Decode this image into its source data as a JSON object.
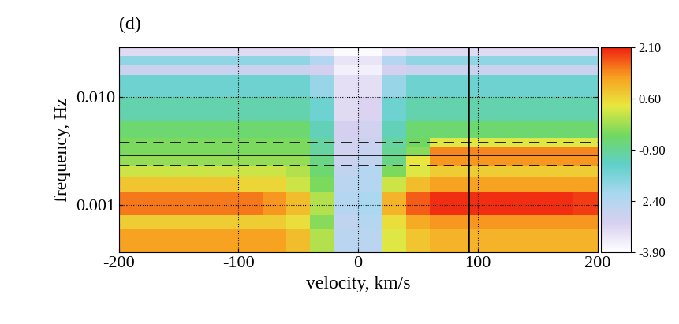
{
  "chart_data": {
    "type": "heatmap",
    "title": "(d)",
    "x_label": "velocity, km/s",
    "y_label": "frequency, Hz",
    "log": "y",
    "grid": true,
    "xlim": [
      -200,
      200
    ],
    "xticks": [
      -200,
      -100,
      0,
      100,
      200
    ],
    "ylim": [
      0.00036,
      0.029
    ],
    "yticks": [
      0.001,
      {
        "value": 0.01,
        "label": "0.010"
      }
    ],
    "x_edges": [
      -200,
      -180,
      -160,
      -140,
      -120,
      -100,
      -80,
      -60,
      -40,
      -20,
      0,
      20,
      40,
      60,
      80,
      100,
      120,
      140,
      160,
      180,
      200
    ],
    "y_edges": [
      0.00036,
      0.0006,
      0.0008,
      0.0013,
      0.0018,
      0.0023,
      0.00287,
      0.0034,
      0.0042,
      0.006,
      0.01,
      0.016,
      0.02,
      0.024,
      0.029
    ],
    "cells": [
      [
        1.2,
        1.2,
        1.2,
        1.2,
        1.2,
        1.2,
        1.2,
        0.9,
        0.0,
        -2.5,
        -2.5,
        0.3,
        0.8,
        1.0,
        1.0,
        1.0,
        1.0,
        1.0,
        1.0,
        1.0
      ],
      [
        0.7,
        0.7,
        0.7,
        0.7,
        0.7,
        0.7,
        0.7,
        0.5,
        -0.3,
        -2.6,
        -2.4,
        0.5,
        1.1,
        1.3,
        1.3,
        1.3,
        1.3,
        1.3,
        1.3,
        1.3
      ],
      [
        1.5,
        1.5,
        1.5,
        1.5,
        1.5,
        1.5,
        1.3,
        0.9,
        0.0,
        -2.4,
        -2.2,
        1.0,
        1.7,
        2.0,
        2.0,
        2.0,
        2.0,
        2.0,
        2.0,
        1.9
      ],
      [
        0.8,
        0.8,
        0.8,
        0.8,
        0.8,
        0.6,
        0.6,
        0.2,
        -0.4,
        -2.5,
        -2.4,
        0.2,
        0.9,
        1.2,
        1.2,
        1.2,
        1.2,
        1.2,
        1.2,
        1.2
      ],
      [
        0.2,
        0.2,
        0.2,
        0.2,
        0.2,
        0.2,
        0.2,
        0.0,
        -0.6,
        -2.6,
        -2.4,
        -0.4,
        0.3,
        0.7,
        0.7,
        0.7,
        0.7,
        0.7,
        0.7,
        0.7
      ],
      [
        -0.2,
        -0.2,
        -0.2,
        -0.2,
        -0.2,
        -0.2,
        -0.2,
        -0.2,
        -0.8,
        -2.8,
        -2.6,
        -0.8,
        0.4,
        1.3,
        1.3,
        1.3,
        1.3,
        1.3,
        1.3,
        1.3
      ],
      [
        -0.4,
        -0.4,
        -0.4,
        -0.4,
        -0.4,
        -0.4,
        -0.4,
        -0.4,
        -1.0,
        -2.9,
        -2.7,
        -0.9,
        -0.3,
        1.4,
        1.4,
        1.4,
        1.4,
        1.4,
        1.4,
        1.4
      ],
      [
        -0.4,
        -0.4,
        -0.4,
        -0.4,
        -0.4,
        -0.4,
        -0.4,
        -0.4,
        -1.0,
        -2.9,
        -2.8,
        -1.0,
        -0.5,
        0.3,
        0.3,
        0.3,
        0.3,
        0.3,
        0.3,
        0.3
      ],
      [
        -0.6,
        -0.6,
        -0.6,
        -0.6,
        -0.6,
        -0.6,
        -0.6,
        -0.6,
        -1.2,
        -3.0,
        -2.9,
        -1.2,
        -0.6,
        -0.6,
        -0.6,
        -0.6,
        -0.6,
        -0.6,
        -0.6,
        -0.6
      ],
      [
        -1.1,
        -1.1,
        -1.1,
        -1.1,
        -1.1,
        -1.1,
        -1.1,
        -1.1,
        -1.5,
        -3.2,
        -3.1,
        -1.5,
        -1.1,
        -1.1,
        -1.1,
        -1.1,
        -1.1,
        -1.1,
        -1.1,
        -1.1
      ],
      [
        -1.5,
        -1.5,
        -1.5,
        -1.5,
        -1.5,
        -1.5,
        -1.5,
        -1.5,
        -2.0,
        -3.3,
        -3.3,
        -2.0,
        -1.5,
        -1.5,
        -1.5,
        -1.5,
        -1.5,
        -1.5,
        -1.5,
        -1.5
      ],
      [
        -2.8,
        -2.8,
        -2.8,
        -2.8,
        -2.8,
        -2.8,
        -2.8,
        -2.8,
        -3.0,
        -3.6,
        -3.6,
        -3.0,
        -2.8,
        -2.8,
        -2.8,
        -2.8,
        -2.8,
        -2.8,
        -2.8,
        -2.8
      ],
      [
        -1.9,
        -1.9,
        -1.9,
        -1.9,
        -1.9,
        -1.9,
        -1.9,
        -1.9,
        -2.4,
        -3.4,
        -3.4,
        -2.4,
        -1.9,
        -1.9,
        -1.9,
        -1.9,
        -1.9,
        -1.9,
        -1.9,
        -1.9
      ],
      [
        -3.2,
        -3.2,
        -3.2,
        -3.2,
        -3.2,
        -3.2,
        -3.2,
        -3.2,
        -3.4,
        -3.8,
        -3.8,
        -3.4,
        -3.2,
        -3.2,
        -3.2,
        -3.2,
        -3.2,
        -3.2,
        -3.2,
        -3.2
      ]
    ],
    "color_range": [
      -3.9,
      2.1
    ],
    "color_ticks": [
      {
        "value": 2.1,
        "label": "2.10"
      },
      {
        "value": 0.6,
        "label": "0.60"
      },
      {
        "value": -0.9,
        "label": "-0.90"
      },
      {
        "value": -2.4,
        "label": "-2.40"
      },
      {
        "value": -3.9,
        "label": "-3.90"
      }
    ],
    "hlines_solid": [
      0.00287
    ],
    "hlines_dashed": [
      0.00229,
      0.00374
    ],
    "vlines_solid": [
      92
    ]
  }
}
